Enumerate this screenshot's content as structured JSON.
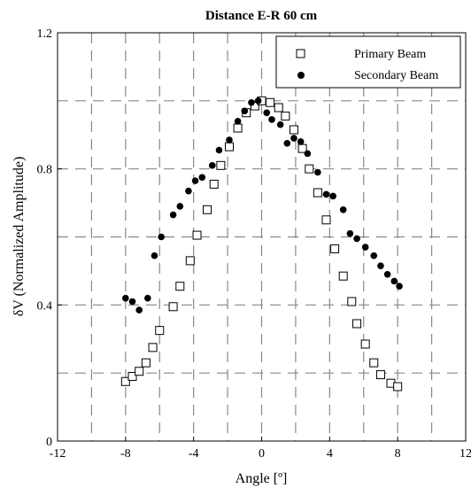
{
  "chart_data": {
    "type": "scatter",
    "title": "Distance E-R 60 cm",
    "xlabel": "Angle [º]",
    "ylabel": "δV (Normalized Amplitude)",
    "xlim": [
      -12,
      12
    ],
    "ylim": [
      0,
      1.2
    ],
    "xticks": [
      -12,
      -8,
      -4,
      0,
      4,
      8,
      12
    ],
    "yticks": [
      0,
      0.4,
      0.8,
      1.2
    ],
    "x_tick_labels": [
      "-12",
      "-8",
      "-4",
      "0",
      "4",
      "8",
      "12"
    ],
    "y_tick_labels": [
      "0",
      "0.4",
      "0.8",
      "1.2"
    ],
    "grid": true,
    "grid_style": "dashed",
    "legend_position": "top-right",
    "series": [
      {
        "name": "Primary Beam",
        "marker": "open-square",
        "color": "#000000",
        "points": [
          [
            -8.0,
            0.175
          ],
          [
            -7.6,
            0.19
          ],
          [
            -7.2,
            0.205
          ],
          [
            -6.8,
            0.23
          ],
          [
            -6.4,
            0.275
          ],
          [
            -6.0,
            0.325
          ],
          [
            -5.2,
            0.395
          ],
          [
            -4.8,
            0.455
          ],
          [
            -4.2,
            0.53
          ],
          [
            -3.8,
            0.605
          ],
          [
            -3.2,
            0.68
          ],
          [
            -2.8,
            0.755
          ],
          [
            -2.4,
            0.81
          ],
          [
            -1.9,
            0.865
          ],
          [
            -1.4,
            0.92
          ],
          [
            -0.9,
            0.965
          ],
          [
            -0.4,
            0.985
          ],
          [
            0.0,
            1.0
          ],
          [
            0.5,
            0.995
          ],
          [
            1.0,
            0.98
          ],
          [
            1.4,
            0.955
          ],
          [
            1.9,
            0.915
          ],
          [
            2.4,
            0.86
          ],
          [
            2.8,
            0.8
          ],
          [
            3.3,
            0.73
          ],
          [
            3.8,
            0.65
          ],
          [
            4.3,
            0.565
          ],
          [
            4.8,
            0.485
          ],
          [
            5.3,
            0.41
          ],
          [
            5.6,
            0.345
          ],
          [
            6.1,
            0.285
          ],
          [
            6.6,
            0.23
          ],
          [
            7.0,
            0.195
          ],
          [
            7.6,
            0.17
          ],
          [
            8.0,
            0.16
          ]
        ]
      },
      {
        "name": "Secondary Beam",
        "marker": "filled-circle",
        "color": "#000000",
        "points": [
          [
            -8.0,
            0.42
          ],
          [
            -7.6,
            0.41
          ],
          [
            -7.2,
            0.385
          ],
          [
            -6.7,
            0.42
          ],
          [
            -6.3,
            0.545
          ],
          [
            -5.9,
            0.6
          ],
          [
            -5.2,
            0.665
          ],
          [
            -4.8,
            0.69
          ],
          [
            -4.3,
            0.735
          ],
          [
            -3.9,
            0.765
          ],
          [
            -3.5,
            0.775
          ],
          [
            -2.9,
            0.81
          ],
          [
            -2.5,
            0.855
          ],
          [
            -1.9,
            0.885
          ],
          [
            -1.4,
            0.94
          ],
          [
            -1.0,
            0.97
          ],
          [
            -0.6,
            0.995
          ],
          [
            -0.2,
            1.0
          ],
          [
            0.3,
            0.965
          ],
          [
            0.6,
            0.945
          ],
          [
            1.1,
            0.93
          ],
          [
            1.5,
            0.875
          ],
          [
            1.9,
            0.89
          ],
          [
            2.3,
            0.88
          ],
          [
            2.7,
            0.845
          ],
          [
            3.3,
            0.79
          ],
          [
            3.8,
            0.725
          ],
          [
            4.2,
            0.72
          ],
          [
            4.8,
            0.68
          ],
          [
            5.2,
            0.61
          ],
          [
            5.6,
            0.595
          ],
          [
            6.1,
            0.57
          ],
          [
            6.6,
            0.545
          ],
          [
            7.0,
            0.515
          ],
          [
            7.4,
            0.49
          ],
          [
            7.8,
            0.47
          ],
          [
            8.1,
            0.455
          ]
        ]
      }
    ]
  }
}
